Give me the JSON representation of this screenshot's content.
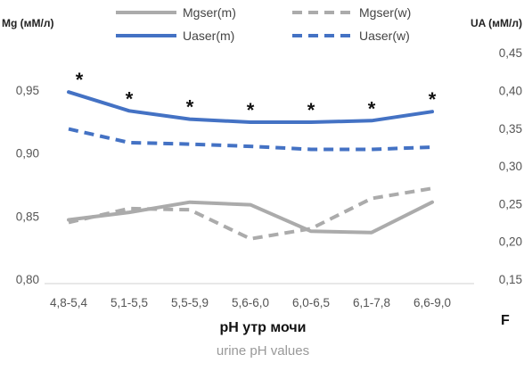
{
  "chart_data": {
    "type": "line",
    "categories": [
      "4,8-5,4",
      "5,1-5,5",
      "5,5-5,9",
      "5,6-6,0",
      "6,0-6,5",
      "6,1-7,8",
      "6,6-9,0"
    ],
    "xlabel": "pH утр мочи",
    "xlabel_en": "urine pH values",
    "ylabel_left": "Mg (мМ/л)",
    "ylabel_right": "UA (мМ/л)",
    "panel_label": "F",
    "ylim_left": [
      0.8,
      1.0
    ],
    "ylim_right": [
      0.15,
      0.45
    ],
    "yticks_left": [
      "0,80",
      "0,85",
      "0,90",
      "0,95"
    ],
    "yticks_right": [
      "0,15",
      "0,20",
      "0,25",
      "0,30",
      "0,35",
      "0,40",
      "0,45"
    ],
    "grid": false,
    "legend_position": "top",
    "significance_marker": "*",
    "significant_categories": [
      0,
      1,
      2,
      3,
      4,
      5,
      6
    ],
    "series": [
      {
        "name": "Mgser(m)",
        "axis": "left",
        "color": "#ababab",
        "style": "solid",
        "values": [
          0.847,
          0.853,
          0.861,
          0.859,
          0.838,
          0.837,
          0.861
        ]
      },
      {
        "name": "Mgser(w)",
        "axis": "left",
        "color": "#ababab",
        "style": "dashed",
        "values": [
          0.845,
          0.856,
          0.855,
          0.832,
          0.84,
          0.864,
          0.872
        ]
      },
      {
        "name": "Uaser(m)",
        "axis": "right",
        "color": "#4472c4",
        "style": "solid",
        "values": [
          0.398,
          0.373,
          0.362,
          0.358,
          0.358,
          0.36,
          0.372
        ]
      },
      {
        "name": "Uaser(w)",
        "axis": "right",
        "color": "#4472c4",
        "style": "dashed",
        "values": [
          0.349,
          0.331,
          0.329,
          0.326,
          0.322,
          0.322,
          0.325
        ]
      }
    ]
  }
}
